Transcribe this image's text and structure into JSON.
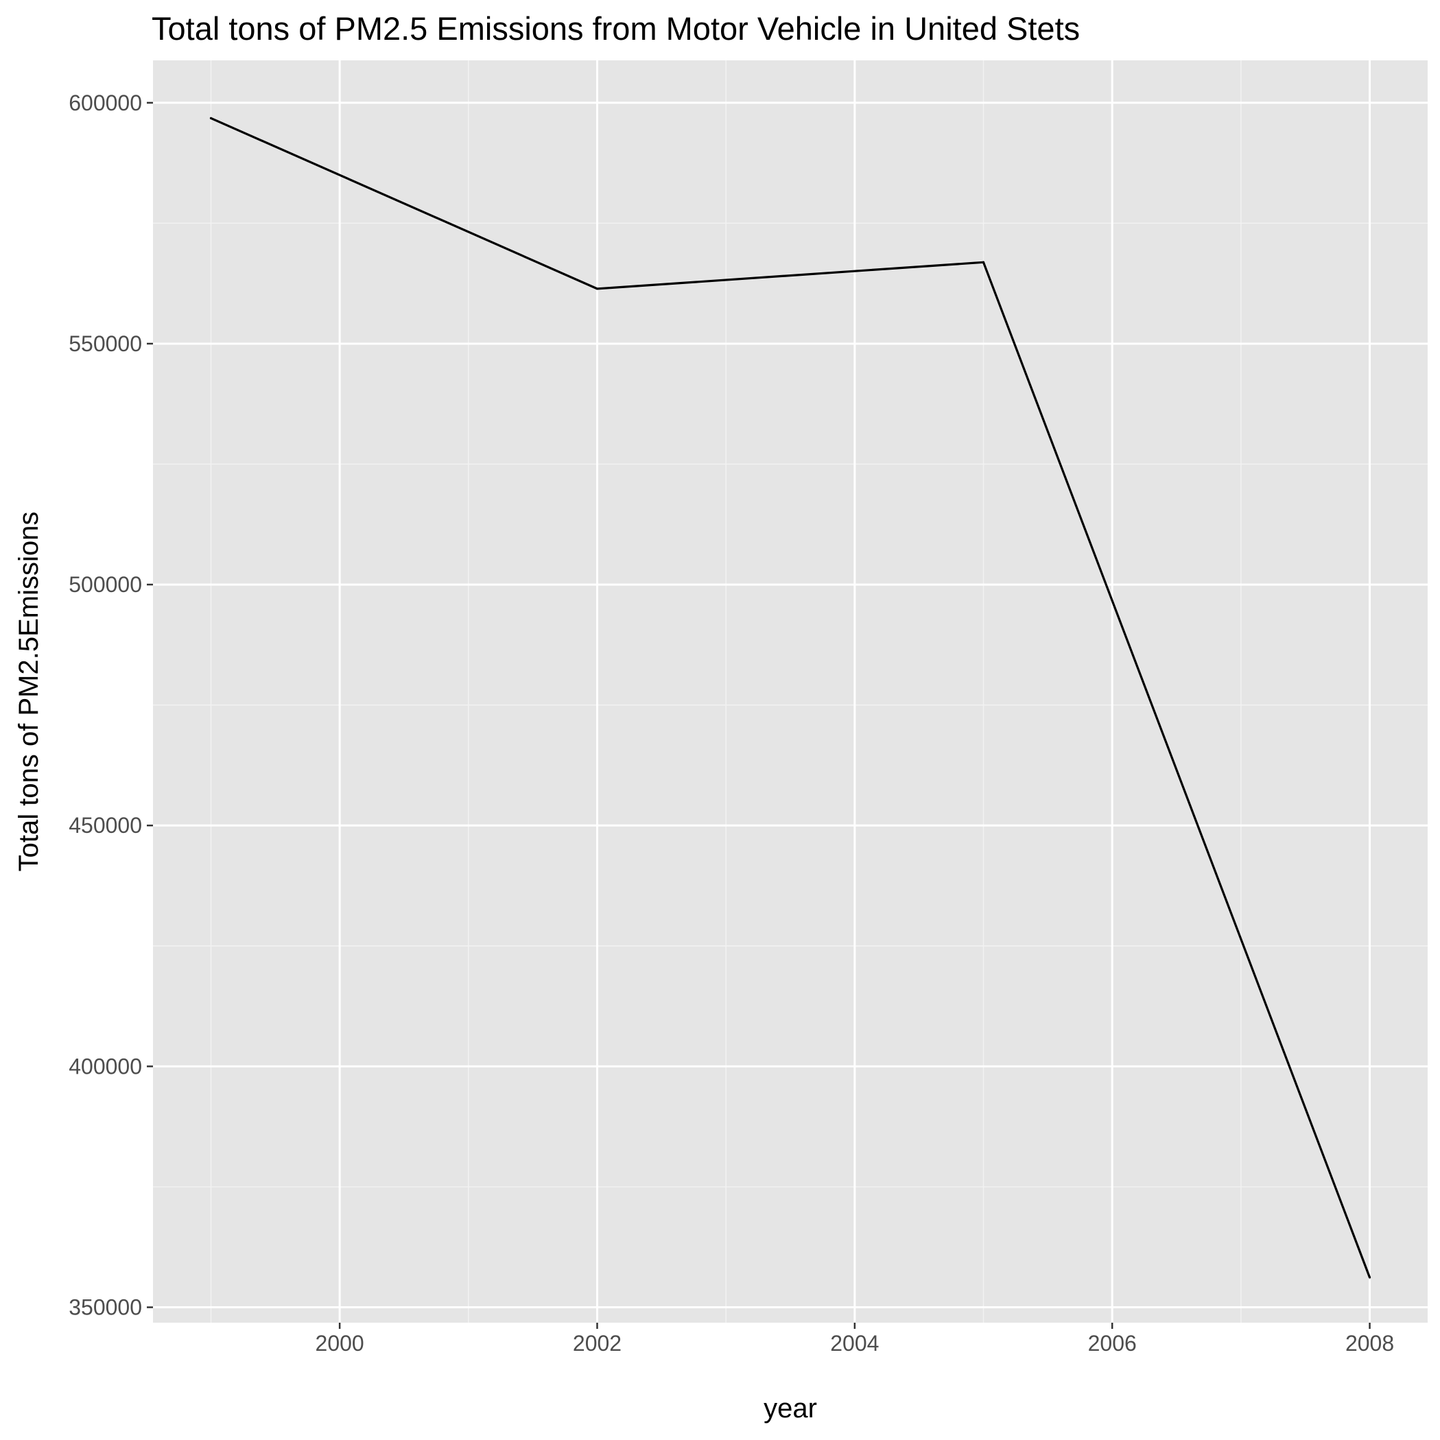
{
  "chart_data": {
    "type": "line",
    "title": "Total tons of PM2.5 Emissions from Motor Vehicle in United Stets",
    "xlabel": "year",
    "ylabel": "Total tons of PM2.5Emissions",
    "x": [
      1999,
      2002,
      2005,
      2008
    ],
    "values": [
      596800,
      561400,
      566900,
      356200
    ],
    "xlim": [
      1998.55,
      2008.45
    ],
    "ylim": [
      346800,
      608800
    ],
    "x_ticks": [
      2000,
      2002,
      2004,
      2006,
      2008
    ],
    "x_tick_labels": [
      "2000",
      "2002",
      "2004",
      "2006",
      "2008"
    ],
    "x_minor_ticks": [
      1999,
      2001,
      2003,
      2005,
      2007
    ],
    "y_ticks": [
      350000,
      400000,
      450000,
      500000,
      550000,
      600000
    ],
    "y_tick_labels": [
      "350000",
      "400000",
      "450000",
      "500000",
      "550000",
      "600000"
    ],
    "y_minor_ticks": [
      375000,
      425000,
      475000,
      525000,
      575000
    ],
    "grid": true,
    "legend": "none",
    "colors": {
      "panel_background": "#e5e5e5",
      "grid_major": "#ffffff",
      "grid_minor": "#f2f2f2",
      "line": "#000000",
      "tick_mark": "#333333",
      "tick_label": "#4d4d4d"
    }
  }
}
